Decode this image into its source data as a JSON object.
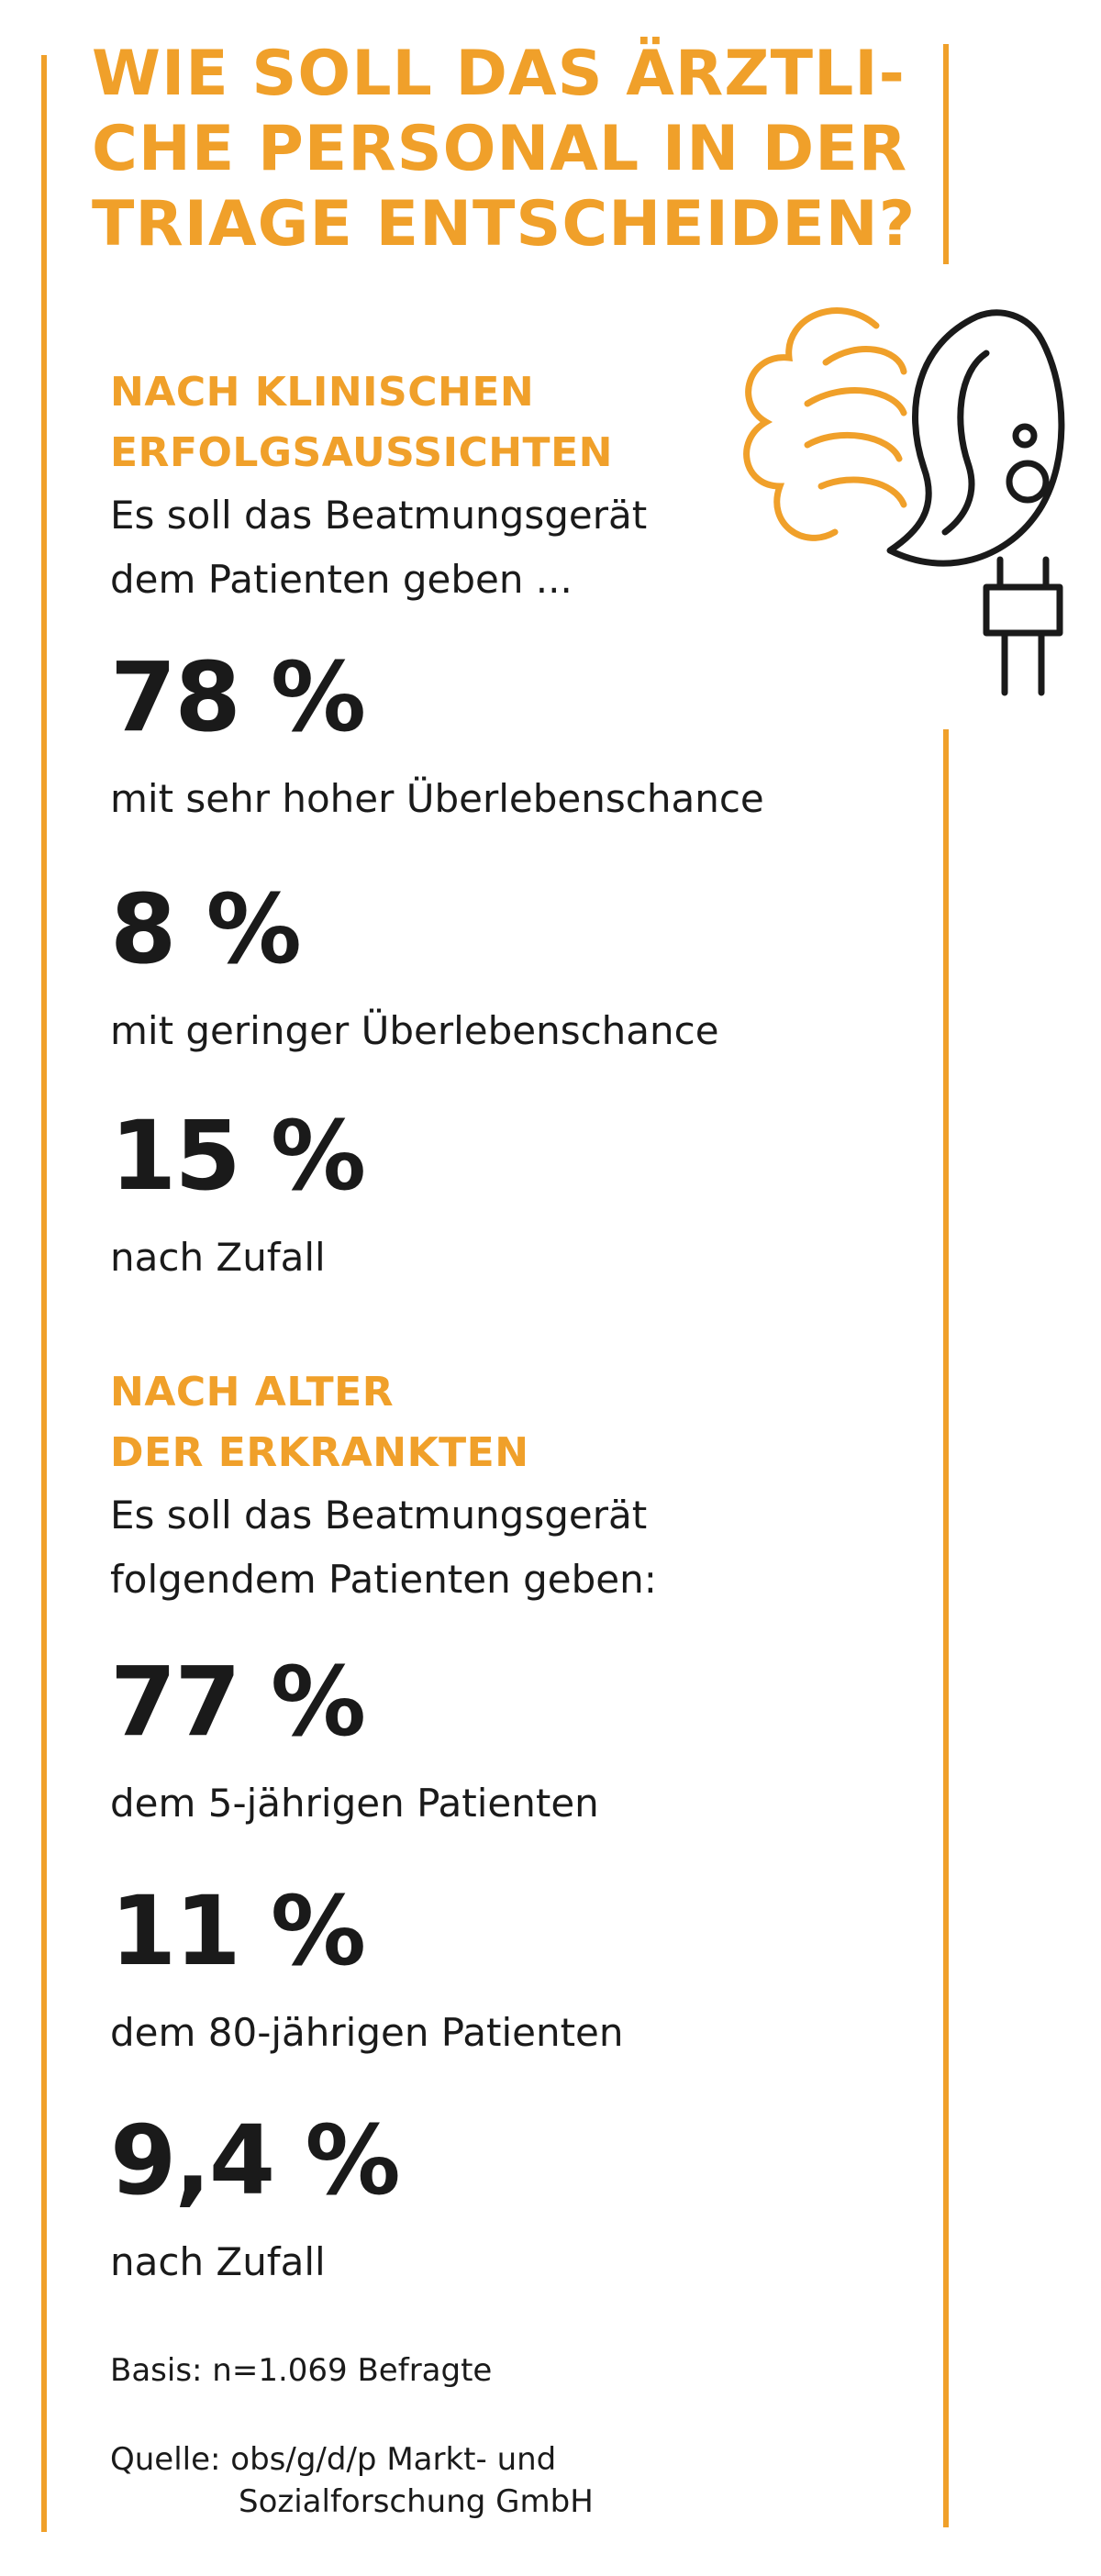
{
  "title": {
    "line1": "WIE SOLL DAS ÄRZTLI-",
    "line2": "CHE PERSONAL IN DER",
    "line3": "TRIAGE ENTSCHEIDEN?"
  },
  "section1": {
    "title_line1": "NACH KLINISCHEN",
    "title_line2": "ERFOLGSAUSSICHTEN",
    "intro_line1": "Es soll das Beatmungsgerät",
    "intro_line2": "dem Patienten geben ...",
    "stats": [
      {
        "value": "78 %",
        "label": "mit sehr hoher Überlebenschance"
      },
      {
        "value": "8 %",
        "label": "mit geringer Überlebenschance"
      },
      {
        "value": "15 %",
        "label": "nach Zufall"
      }
    ]
  },
  "section2": {
    "title_line1": "NACH ALTER",
    "title_line2": "DER ERKRANKTEN",
    "intro_line1": "Es soll das Beatmungsgerät",
    "intro_line2": "folgendem Patienten geben:",
    "stats": [
      {
        "value": "77 %",
        "label": "dem 5-jährigen Patienten"
      },
      {
        "value": "11 %",
        "label": "dem 80-jährigen Patienten"
      },
      {
        "value": "9,4 %",
        "label": "nach Zufall"
      }
    ]
  },
  "basis": "Basis: n=1.069 Befragte",
  "source": {
    "line1": "Quelle: obs/g/d/p Markt- und",
    "line2": "Sozialforschung GmbH"
  },
  "colors": {
    "accent": "#f0a02a",
    "text": "#1a1a1a"
  },
  "illustration": "ventilator-plug-with-air-icon"
}
